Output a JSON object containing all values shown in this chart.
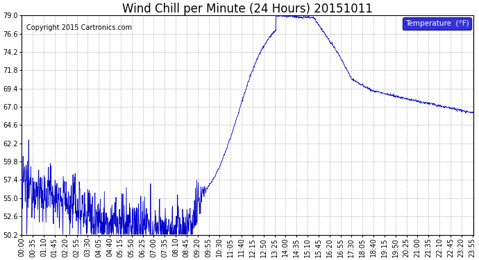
{
  "title": "Wind Chill per Minute (24 Hours) 20151011",
  "copyright": "Copyright 2015 Cartronics.com",
  "legend_label": "Temperature  (°F)",
  "legend_bg": "#0000cc",
  "legend_text_color": "#ffffff",
  "line_color": "#0000cc",
  "bg_color": "#ffffff",
  "plot_bg_color": "#ffffff",
  "grid_color": "#bbbbbb",
  "ylim": [
    50.2,
    79.0
  ],
  "yticks": [
    50.2,
    52.6,
    55.0,
    57.4,
    59.8,
    62.2,
    64.6,
    67.0,
    69.4,
    71.8,
    74.2,
    76.6,
    79.0
  ],
  "title_fontsize": 12,
  "axis_fontsize": 7,
  "copyright_fontsize": 7
}
